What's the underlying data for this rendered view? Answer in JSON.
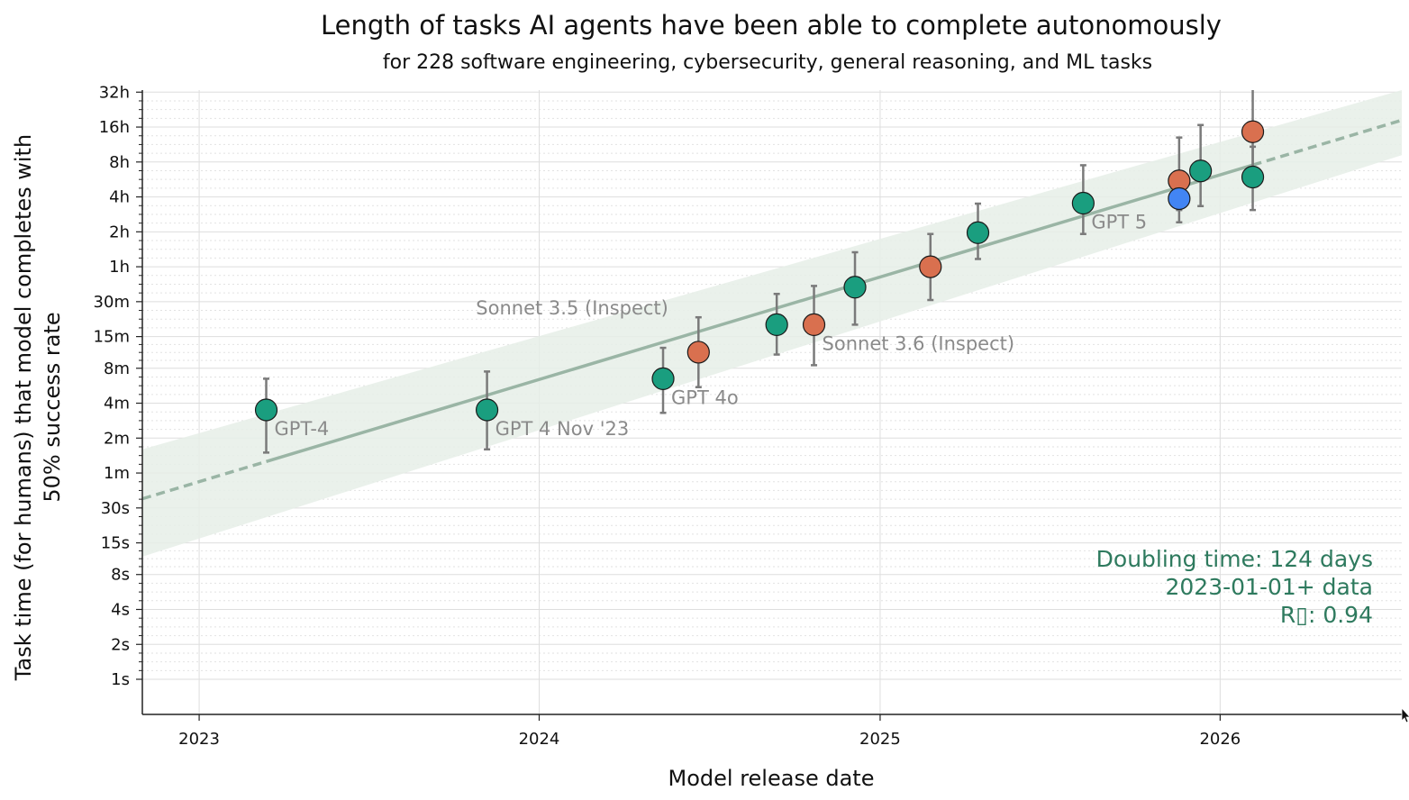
{
  "chart_data": {
    "type": "scatter",
    "title": "Length of tasks AI agents have been able to complete autonomously",
    "subtitle": "for 228 software engineering, cybersecurity, general reasoning, and ML tasks",
    "xlabel": "Model release date",
    "ylabel_line1": "Task time (for humans) that model completes with",
    "ylabel_line2": "50% success rate",
    "y_scale": "log",
    "xlim": [
      "2022-11-01",
      "2026-07-15"
    ],
    "ylim_minutes": [
      0.0083,
      2000
    ],
    "x_ticks": [
      {
        "date": "2023-01-01",
        "label": "2023"
      },
      {
        "date": "2024-01-01",
        "label": "2024"
      },
      {
        "date": "2025-01-01",
        "label": "2025"
      },
      {
        "date": "2026-01-01",
        "label": "2026"
      }
    ],
    "y_ticks": [
      {
        "minutes": 0.01667,
        "label": "1s"
      },
      {
        "minutes": 0.03333,
        "label": "2s"
      },
      {
        "minutes": 0.06667,
        "label": "4s"
      },
      {
        "minutes": 0.13333,
        "label": "8s"
      },
      {
        "minutes": 0.25,
        "label": "15s"
      },
      {
        "minutes": 0.5,
        "label": "30s"
      },
      {
        "minutes": 1,
        "label": "1m"
      },
      {
        "minutes": 2,
        "label": "2m"
      },
      {
        "minutes": 4,
        "label": "4m"
      },
      {
        "minutes": 8,
        "label": "8m"
      },
      {
        "minutes": 15,
        "label": "15m"
      },
      {
        "minutes": 30,
        "label": "30m"
      },
      {
        "minutes": 60,
        "label": "1h"
      },
      {
        "minutes": 120,
        "label": "2h"
      },
      {
        "minutes": 240,
        "label": "4h"
      },
      {
        "minutes": 480,
        "label": "8h"
      },
      {
        "minutes": 960,
        "label": "16h"
      },
      {
        "minutes": 1920,
        "label": "32h"
      }
    ],
    "grid": true,
    "colors": {
      "green": "#1a9e7f",
      "orange": "#d9704f",
      "blue": "#4285f4",
      "trend": "#9ab5a5",
      "band": "#e6eee8",
      "errorbar": "#7a7a7a"
    },
    "points": [
      {
        "date": "2023-03-14",
        "minutes": 3.5,
        "lo": 1.5,
        "hi": 6.5,
        "color": "green",
        "label": "GPT-4"
      },
      {
        "date": "2023-11-06",
        "minutes": 3.5,
        "lo": 1.6,
        "hi": 7.5,
        "color": "green",
        "label": "GPT 4 Nov '23"
      },
      {
        "date": "2024-05-13",
        "minutes": 6.5,
        "lo": 3.3,
        "hi": 12,
        "color": "green",
        "label": "GPT 4o"
      },
      {
        "date": "2024-06-20",
        "minutes": 11,
        "lo": 5.5,
        "hi": 22,
        "color": "orange",
        "label": "Sonnet 3.5 (Inspect)"
      },
      {
        "date": "2024-09-12",
        "minutes": 19,
        "lo": 10.5,
        "hi": 35,
        "color": "green",
        "label": ""
      },
      {
        "date": "2024-10-22",
        "minutes": 19,
        "lo": 8.5,
        "hi": 41,
        "color": "orange",
        "label": "Sonnet 3.6 (Inspect)"
      },
      {
        "date": "2024-12-05",
        "minutes": 40,
        "lo": 19,
        "hi": 80,
        "color": "green",
        "label": ""
      },
      {
        "date": "2025-02-24",
        "minutes": 60,
        "lo": 31,
        "hi": 115,
        "color": "orange",
        "label": ""
      },
      {
        "date": "2025-04-16",
        "minutes": 118,
        "lo": 70,
        "hi": 210,
        "color": "green",
        "label": ""
      },
      {
        "date": "2025-08-07",
        "minutes": 212,
        "lo": 115,
        "hi": 450,
        "color": "green",
        "label": "GPT 5"
      },
      {
        "date": "2025-11-18",
        "minutes": 330,
        "lo": 185,
        "hi": 780,
        "color": "orange",
        "label": ""
      },
      {
        "date": "2025-11-18",
        "minutes": 232,
        "lo": 145,
        "hi": 340,
        "color": "blue",
        "label": ""
      },
      {
        "date": "2025-12-11",
        "minutes": 402,
        "lo": 200,
        "hi": 1000,
        "color": "green",
        "label": ""
      },
      {
        "date": "2026-02-05",
        "minutes": 875,
        "lo": 400,
        "hi": 2000,
        "color": "orange",
        "label": ""
      },
      {
        "date": "2026-02-05",
        "minutes": 356,
        "lo": 185,
        "hi": 650,
        "color": "green",
        "label": ""
      }
    ],
    "trend_line": {
      "fit_start": "2023-03-14",
      "fit_end": "2026-02-05",
      "start": {
        "date": "2022-11-01",
        "minutes": 0.6
      },
      "end": {
        "date": "2026-07-15",
        "minutes": 1100
      },
      "band_low": {
        "start": 0.19,
        "end": 550
      },
      "band_high": {
        "start": 1.6,
        "end": 2000
      }
    },
    "annotation": {
      "line1": "Doubling time: 124 days",
      "line2": "2023-01-01+ data",
      "line3": "R▯: 0.94"
    }
  }
}
